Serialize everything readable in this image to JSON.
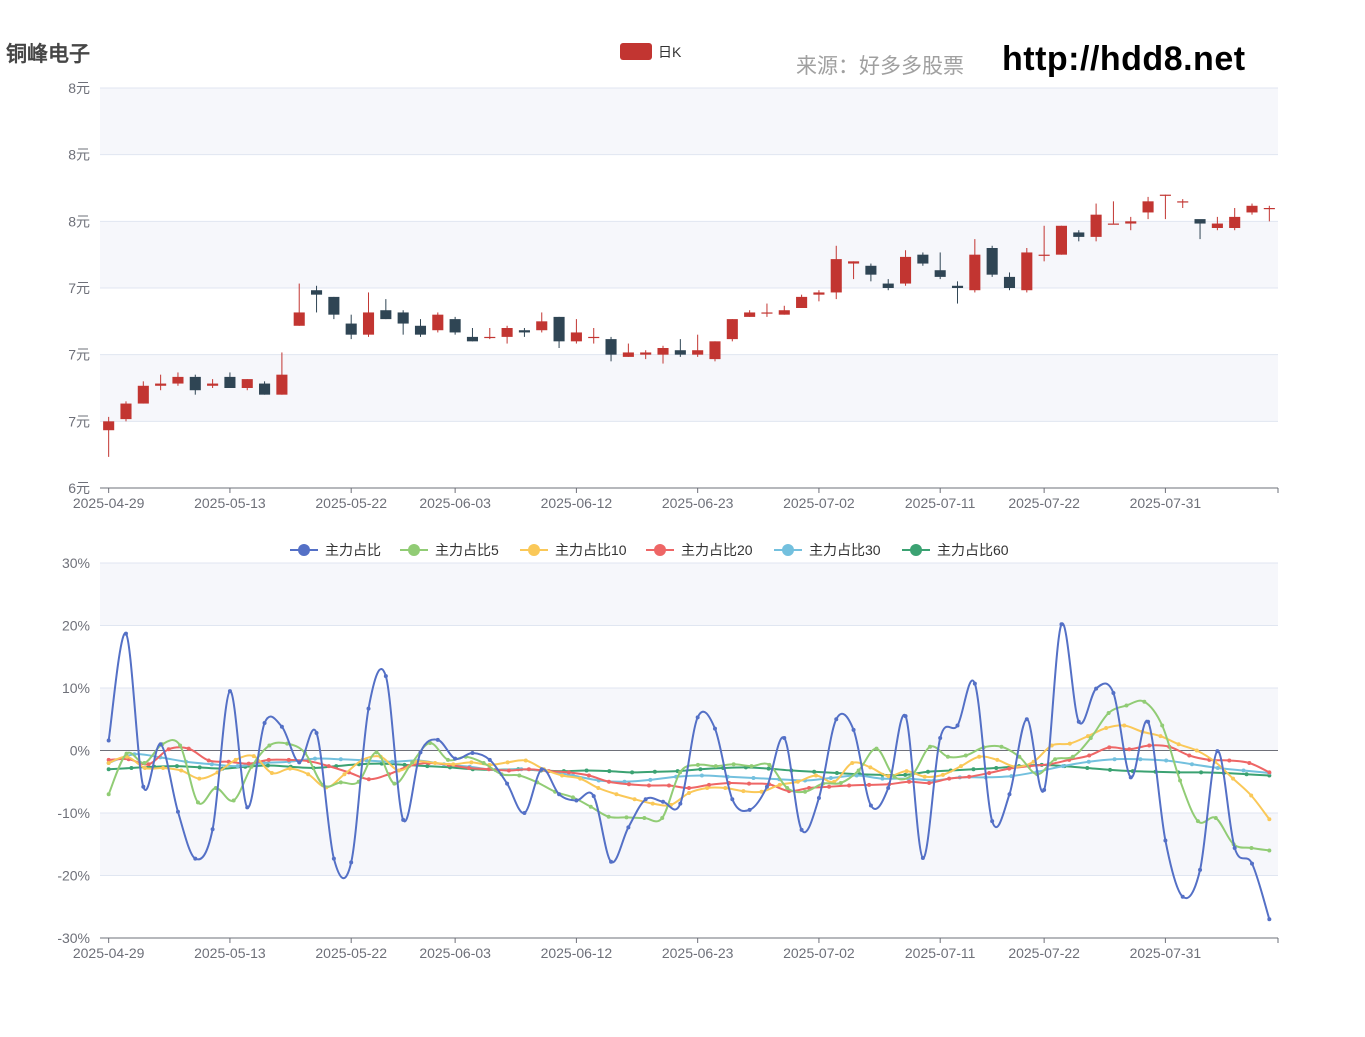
{
  "header": {
    "title": "铜峰电子",
    "source": "来源：好多多股票",
    "site": "http://hdd8.net"
  },
  "chart_data": [
    {
      "type": "candlestick",
      "legend": [
        "日K"
      ],
      "up_color": "#c23531",
      "down_color": "#2f4554",
      "y_tick_labels": [
        "6元",
        "7元",
        "7元",
        "7元",
        "8元",
        "8元",
        "8元"
      ],
      "ylim": [
        6.5,
        8.3
      ],
      "x_tick_labels": [
        "2025-04-29",
        "2025-05-13",
        "2025-05-22",
        "2025-06-03",
        "2025-06-12",
        "2025-06-23",
        "2025-07-02",
        "2025-07-11",
        "2025-07-22",
        "2025-07-31"
      ],
      "candles": [
        [
          6.76,
          6.8,
          6.64,
          6.82
        ],
        [
          6.81,
          6.88,
          6.8,
          6.89
        ],
        [
          6.88,
          6.96,
          6.88,
          6.98
        ],
        [
          6.96,
          6.97,
          6.94,
          7.01
        ],
        [
          6.97,
          7.0,
          6.96,
          7.02
        ],
        [
          7.0,
          6.94,
          6.92,
          7.01
        ],
        [
          6.96,
          6.97,
          6.95,
          6.99
        ],
        [
          7.0,
          6.95,
          6.95,
          7.02
        ],
        [
          6.95,
          6.99,
          6.94,
          6.99
        ],
        [
          6.97,
          6.92,
          6.92,
          6.98
        ],
        [
          6.92,
          7.01,
          6.92,
          7.11
        ],
        [
          7.23,
          7.29,
          7.23,
          7.42
        ],
        [
          7.39,
          7.37,
          7.29,
          7.41
        ],
        [
          7.36,
          7.28,
          7.26,
          7.36
        ],
        [
          7.24,
          7.19,
          7.17,
          7.28
        ],
        [
          7.19,
          7.29,
          7.18,
          7.38
        ],
        [
          7.3,
          7.26,
          7.26,
          7.35
        ],
        [
          7.29,
          7.24,
          7.19,
          7.3
        ],
        [
          7.23,
          7.19,
          7.18,
          7.26
        ],
        [
          7.21,
          7.28,
          7.2,
          7.29
        ],
        [
          7.26,
          7.2,
          7.19,
          7.27
        ],
        [
          7.18,
          7.16,
          7.16,
          7.22
        ],
        [
          7.18,
          7.18,
          7.17,
          7.22
        ],
        [
          7.18,
          7.22,
          7.15,
          7.23
        ],
        [
          7.21,
          7.2,
          7.18,
          7.22
        ],
        [
          7.21,
          7.25,
          7.2,
          7.29
        ],
        [
          7.27,
          7.16,
          7.13,
          7.27
        ],
        [
          7.16,
          7.2,
          7.15,
          7.26
        ],
        [
          7.18,
          7.18,
          7.15,
          7.22
        ],
        [
          7.17,
          7.1,
          7.07,
          7.18
        ],
        [
          7.09,
          7.11,
          7.09,
          7.15
        ],
        [
          7.1,
          7.11,
          7.08,
          7.12
        ],
        [
          7.1,
          7.13,
          7.06,
          7.14
        ],
        [
          7.12,
          7.1,
          7.09,
          7.17
        ],
        [
          7.1,
          7.12,
          7.09,
          7.19
        ],
        [
          7.08,
          7.16,
          7.07,
          7.16
        ],
        [
          7.17,
          7.26,
          7.16,
          7.26
        ],
        [
          7.27,
          7.29,
          7.27,
          7.3
        ],
        [
          7.29,
          7.29,
          7.27,
          7.33
        ],
        [
          7.28,
          7.3,
          7.28,
          7.32
        ],
        [
          7.31,
          7.36,
          7.31,
          7.37
        ],
        [
          7.37,
          7.38,
          7.34,
          7.39
        ],
        [
          7.38,
          7.53,
          7.35,
          7.59
        ],
        [
          7.51,
          7.52,
          7.44,
          7.52
        ],
        [
          7.5,
          7.46,
          7.43,
          7.51
        ],
        [
          7.42,
          7.4,
          7.39,
          7.44
        ],
        [
          7.42,
          7.54,
          7.41,
          7.57
        ],
        [
          7.55,
          7.51,
          7.5,
          7.56
        ],
        [
          7.48,
          7.45,
          7.44,
          7.56
        ],
        [
          7.41,
          7.4,
          7.33,
          7.43
        ],
        [
          7.39,
          7.55,
          7.38,
          7.62
        ],
        [
          7.58,
          7.46,
          7.45,
          7.59
        ],
        [
          7.45,
          7.4,
          7.39,
          7.47
        ],
        [
          7.39,
          7.56,
          7.38,
          7.58
        ],
        [
          7.55,
          7.55,
          7.52,
          7.68
        ],
        [
          7.55,
          7.68,
          7.55,
          7.68
        ],
        [
          7.65,
          7.63,
          7.61,
          7.66
        ],
        [
          7.63,
          7.73,
          7.61,
          7.78
        ],
        [
          7.69,
          7.69,
          7.69,
          7.79
        ],
        [
          7.69,
          7.7,
          7.66,
          7.72
        ],
        [
          7.74,
          7.79,
          7.71,
          7.81
        ],
        [
          7.82,
          7.82,
          7.71,
          7.82
        ],
        [
          7.79,
          7.79,
          7.76,
          7.8
        ],
        [
          7.71,
          7.69,
          7.62,
          7.7
        ],
        [
          7.67,
          7.69,
          7.66,
          7.72
        ],
        [
          7.67,
          7.72,
          7.66,
          7.76
        ],
        [
          7.74,
          7.77,
          7.73,
          7.78
        ],
        [
          7.76,
          7.76,
          7.7,
          7.77
        ]
      ]
    },
    {
      "type": "line",
      "y_tick_labels": [
        "-30%",
        "-20%",
        "-10%",
        "0%",
        "10%",
        "20%",
        "30%"
      ],
      "ylim": [
        -30,
        30
      ],
      "x_tick_labels": [
        "2025-04-29",
        "2025-05-13",
        "2025-05-22",
        "2025-06-03",
        "2025-06-12",
        "2025-06-23",
        "2025-07-02",
        "2025-07-11",
        "2025-07-22",
        "2025-07-31"
      ],
      "series": [
        {
          "name": "主力占比",
          "color": "#5470c6",
          "values": [
            1.6,
            18.7,
            -5.8,
            1.0,
            -9.8,
            -17.3,
            -12.6,
            9.5,
            -9.1,
            4.4,
            3.8,
            -1.9,
            2.8,
            -17.3,
            -17.9,
            6.7,
            11.9,
            -11.1,
            -0.3,
            1.7,
            -1.3,
            -0.4,
            -1.5,
            -5.3,
            -10.0,
            -3.0,
            -7.0,
            -8.0,
            -7.3,
            -17.8,
            -12.3,
            -7.8,
            -8.2,
            -8.5,
            5.3,
            3.5,
            -7.8,
            -9.5,
            -5.8,
            2.0,
            -12.7,
            -7.6,
            5.0,
            3.3,
            -8.8,
            -6.0,
            5.5,
            -17.2,
            2.0,
            4.0,
            10.7,
            -11.3,
            -7.0,
            5.0,
            -6.3,
            20.2,
            4.6,
            9.9,
            9.2,
            -4.3,
            4.6,
            -14.4,
            -23.4,
            -19.1,
            -0.1,
            -15.6,
            -18.1,
            -27.0
          ]
        },
        {
          "name": "主力占比5",
          "color": "#91cc75",
          "values": [
            -7.0,
            -0.5,
            -2.0,
            1.0,
            0.8,
            -8.3,
            -6.0,
            -8.0,
            -2.6,
            0.8,
            1.1,
            -0.4,
            -5.5,
            -5.1,
            -5.0,
            -0.3,
            -5.3,
            -1.9,
            1.2,
            -1.5,
            -1.0,
            -2.0,
            -3.8,
            -4.0,
            -5.1,
            -6.6,
            -7.5,
            -9.0,
            -10.6,
            -10.7,
            -10.8,
            -10.8,
            -3.5,
            -2.3,
            -2.5,
            -2.2,
            -2.5,
            -2.3,
            -6.0,
            -6.6,
            -5.3,
            -5.2,
            -3.2,
            0.3,
            -4.2,
            -3.9,
            0.6,
            -1.0,
            -0.8,
            0.5,
            0.6,
            -1.0,
            -3.8,
            -1.4,
            -1.0,
            2.0,
            6.0,
            7.2,
            7.8,
            4.0,
            -4.8,
            -11.3,
            -10.8,
            -15.0,
            -15.6,
            -16.0
          ]
        },
        {
          "name": "主力占比10",
          "color": "#fac858",
          "values": [
            -2.0,
            -1.0,
            -2.8,
            -2.8,
            -3.2,
            -4.5,
            -3.5,
            -1.5,
            -0.9,
            -3.6,
            -2.9,
            -3.8,
            -5.9,
            -3.8,
            -1.5,
            -1.0,
            -3.2,
            -1.8,
            -2.0,
            -2.2,
            -1.9,
            -2.3,
            -1.9,
            -1.6,
            -3.0,
            -4.0,
            -4.5,
            -6.0,
            -7.0,
            -7.8,
            -8.5,
            -8.7,
            -6.8,
            -6.0,
            -6.0,
            -6.5,
            -6.6,
            -5.5,
            -5.0,
            -4.0,
            -5.0,
            -2.0,
            -2.7,
            -4.1,
            -3.3,
            -4.2,
            -3.9,
            -2.5,
            -1.0,
            -1.5,
            -2.6,
            -1.8,
            0.8,
            1.1,
            2.3,
            3.6,
            4.0,
            3.0,
            2.3,
            1.0,
            0.0,
            -1.8,
            -4.5,
            -7.2,
            -11.0
          ]
        },
        {
          "name": "主力占比20",
          "color": "#ee6666",
          "values": [
            -1.5,
            -1.4,
            -2.2,
            0.2,
            0.3,
            -1.6,
            -1.8,
            -2.1,
            -1.5,
            -1.5,
            -1.7,
            -2.5,
            -3.5,
            -4.6,
            -3.8,
            -2.5,
            -2.0,
            -2.3,
            -2.8,
            -3.0,
            -3.2,
            -3.0,
            -3.3,
            -3.5,
            -4.0,
            -5.0,
            -5.4,
            -5.6,
            -5.6,
            -6.0,
            -5.5,
            -5.2,
            -5.3,
            -5.4,
            -6.5,
            -6.0,
            -5.8,
            -5.6,
            -5.5,
            -5.4,
            -5.0,
            -5.2,
            -4.5,
            -4.2,
            -3.6,
            -2.9,
            -2.5,
            -2.2,
            -1.5,
            -0.8,
            0.5,
            0.2,
            0.8,
            0.6,
            -0.8,
            -1.5,
            -1.6,
            -2.0,
            -3.5
          ]
        },
        {
          "name": "主力占比30",
          "color": "#73c0de",
          "values": [
            -2.0,
            -0.6,
            -1.1,
            -1.8,
            -2.2,
            -2.5,
            -2.0,
            -1.8,
            -1.3,
            -1.4,
            -1.6,
            -1.8,
            -1.6,
            -2.2,
            -2.6,
            -3.1,
            -3.0,
            -3.3,
            -4.0,
            -4.8,
            -5.0,
            -4.7,
            -4.2,
            -4.0,
            -4.2,
            -4.4,
            -4.6,
            -4.8,
            -4.4,
            -4.0,
            -4.5,
            -4.5,
            -4.8,
            -4.3,
            -4.3,
            -4.1,
            -3.4,
            -2.5,
            -1.8,
            -1.4,
            -1.4,
            -1.6,
            -2.2,
            -2.8,
            -3.2,
            -3.6
          ]
        },
        {
          "name": "主力占比60",
          "color": "#3ba272",
          "values": [
            -3.0,
            -2.8,
            -2.6,
            -2.5,
            -2.7,
            -2.9,
            -2.6,
            -2.4,
            -2.6,
            -2.8,
            -2.5,
            -2.2,
            -2.1,
            -2.3,
            -2.5,
            -2.7,
            -3.0,
            -3.1,
            -3.0,
            -3.2,
            -3.3,
            -3.2,
            -3.3,
            -3.5,
            -3.4,
            -3.3,
            -3.0,
            -2.8,
            -2.7,
            -2.9,
            -3.2,
            -3.4,
            -3.6,
            -3.8,
            -3.9,
            -3.9,
            -3.4,
            -3.2,
            -3.0,
            -2.8,
            -2.5,
            -2.3,
            -2.5,
            -2.8,
            -3.1,
            -3.3,
            -3.4,
            -3.5,
            -3.5,
            -3.6,
            -3.8,
            -4.0
          ]
        }
      ]
    }
  ]
}
